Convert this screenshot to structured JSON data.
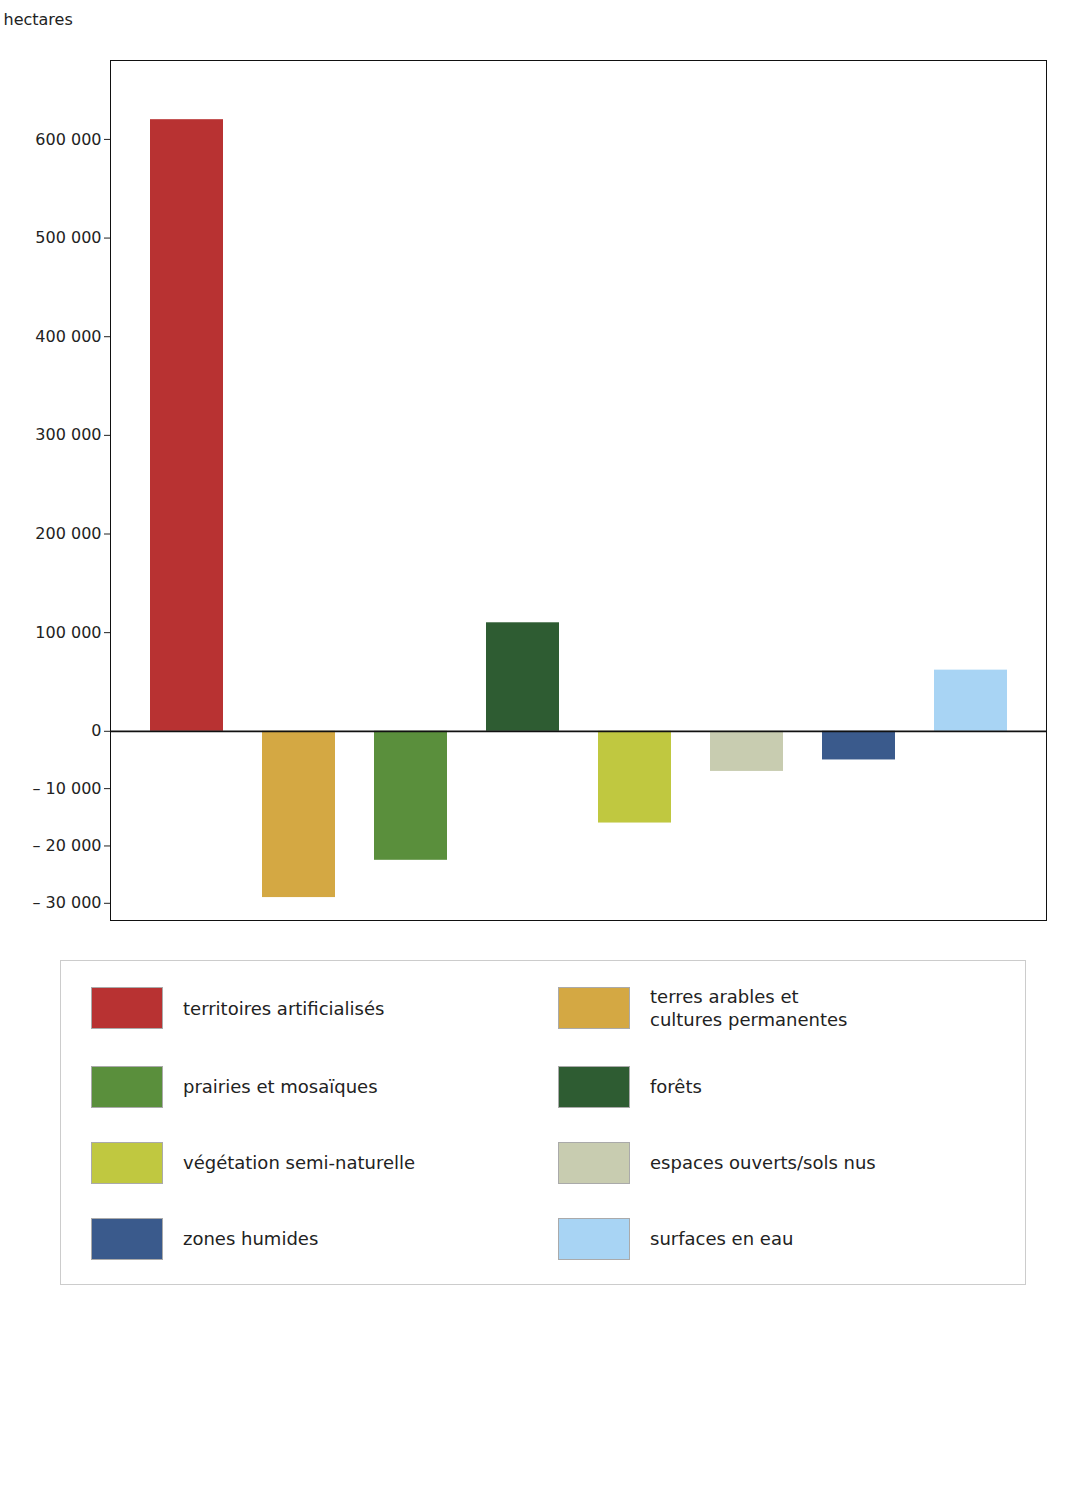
{
  "chart_data": {
    "type": "bar",
    "categories": [
      "territoires artificialisés",
      "terres arables et\ncultures permanentes",
      "prairies et mosaïques",
      "forêts",
      "végétation semi-naturelle",
      "espaces ouverts/sols nus",
      "zones humides",
      "surfaces en eau"
    ],
    "values": [
      620000,
      -29000,
      -22500,
      110000,
      -16000,
      -7000,
      -5000,
      62000
    ],
    "colors": [
      "#b83232",
      "#d4a843",
      "#5a8f3c",
      "#2e5c32",
      "#c0c840",
      "#c8ccb0",
      "#3a5a8c",
      "#a8d4f4"
    ],
    "ylabel": "hectares",
    "ylim": [
      -33000,
      680000
    ],
    "yticks": [
      {
        "value": -30000,
        "label": "– 30 000"
      },
      {
        "value": -20000,
        "label": "– 20 000"
      },
      {
        "value": -10000,
        "label": "– 10 000"
      },
      0,
      {
        "value": 100000,
        "label": "100 000"
      },
      {
        "value": 200000,
        "label": "200 000"
      },
      {
        "value": 300000,
        "label": "300 000"
      },
      {
        "value": 400000,
        "label": "400 000"
      },
      {
        "value": 500000,
        "label": "500 000"
      },
      {
        "value": 600000,
        "label": "600 000"
      }
    ],
    "grid": false,
    "legend": "bottom",
    "tick_labels": "y"
  }
}
